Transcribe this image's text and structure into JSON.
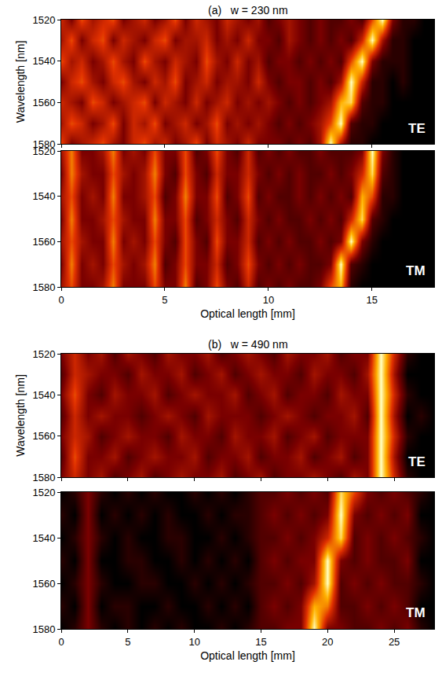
{
  "chart_data": [
    {
      "type": "heatmap",
      "title": "(a)   w = 230 nm",
      "label": "TE",
      "y_label": "Wavelength [nm]",
      "tick_labels": "y",
      "x": [
        0,
        0.5,
        1,
        1.5,
        2,
        2.5,
        3,
        3.5,
        4,
        4.5,
        5,
        5.5,
        6,
        6.5,
        7,
        7.5,
        8,
        8.5,
        9,
        9.5,
        10,
        10.5,
        11,
        11.5,
        12,
        12.5,
        13,
        13.5,
        14,
        14.5,
        15,
        15.5,
        16,
        16.5,
        17,
        17.5,
        18
      ],
      "y": [
        1520,
        1530,
        1540,
        1550,
        1560,
        1570,
        1580
      ],
      "z": [
        [
          5,
          3,
          6,
          4,
          5,
          6,
          3,
          4,
          5,
          3,
          4,
          6,
          3,
          5,
          4,
          3,
          5,
          4,
          3,
          4,
          2,
          3,
          4,
          3,
          2,
          3,
          2,
          2,
          3,
          2,
          6,
          10,
          3,
          1,
          1,
          0,
          0
        ],
        [
          4,
          6,
          3,
          5,
          6,
          3,
          5,
          4,
          3,
          5,
          6,
          3,
          4,
          4,
          5,
          3,
          4,
          3,
          5,
          3,
          3,
          2,
          4,
          3,
          2,
          3,
          2,
          3,
          2,
          5,
          10,
          4,
          1,
          1,
          0,
          0,
          0
        ],
        [
          6,
          4,
          5,
          3,
          4,
          6,
          4,
          3,
          6,
          4,
          3,
          5,
          4,
          3,
          6,
          4,
          3,
          5,
          3,
          4,
          2,
          3,
          3,
          2,
          3,
          2,
          3,
          2,
          6,
          10,
          3,
          1,
          1,
          1,
          0,
          0,
          0
        ],
        [
          3,
          5,
          6,
          4,
          3,
          5,
          6,
          4,
          3,
          5,
          4,
          6,
          3,
          4,
          5,
          3,
          4,
          4,
          3,
          5,
          3,
          2,
          3,
          3,
          2,
          3,
          2,
          4,
          10,
          5,
          1,
          1,
          0,
          1,
          0,
          0,
          0
        ],
        [
          5,
          4,
          3,
          6,
          5,
          3,
          4,
          5,
          6,
          3,
          5,
          4,
          3,
          5,
          3,
          4,
          5,
          3,
          4,
          3,
          4,
          3,
          2,
          3,
          2,
          3,
          4,
          8,
          9,
          2,
          1,
          1,
          0,
          0,
          0,
          0,
          0
        ],
        [
          4,
          6,
          5,
          3,
          4,
          6,
          3,
          5,
          4,
          6,
          3,
          4,
          5,
          3,
          4,
          6,
          3,
          4,
          3,
          4,
          3,
          2,
          3,
          2,
          3,
          4,
          6,
          10,
          2,
          1,
          1,
          0,
          0,
          0,
          0,
          0,
          0
        ],
        [
          6,
          3,
          4,
          5,
          6,
          4,
          3,
          5,
          6,
          4,
          5,
          3,
          4,
          6,
          3,
          5,
          4,
          3,
          5,
          3,
          3,
          3,
          2,
          3,
          2,
          4,
          10,
          4,
          1,
          1,
          0,
          0,
          0,
          0,
          0,
          0,
          0
        ]
      ],
      "zlim": [
        0,
        10
      ],
      "xlim": [
        0,
        18
      ],
      "ylim": [
        1580,
        1520
      ],
      "xticks": [
        0,
        5,
        10,
        15
      ],
      "yticks": [
        1520,
        1540,
        1560,
        1580
      ]
    },
    {
      "type": "heatmap",
      "label": "TM",
      "x_label": "Optical length [mm]",
      "x": [
        0,
        0.5,
        1,
        1.5,
        2,
        2.5,
        3,
        3.5,
        4,
        4.5,
        5,
        5.5,
        6,
        6.5,
        7,
        7.5,
        8,
        8.5,
        9,
        9.5,
        10,
        10.5,
        11,
        11.5,
        12,
        12.5,
        13,
        13.5,
        14,
        14.5,
        15,
        15.5,
        16,
        16.5,
        17,
        17.5,
        18
      ],
      "y": [
        1520,
        1530,
        1540,
        1550,
        1560,
        1570,
        1580
      ],
      "z": [
        [
          4,
          7,
          3,
          3,
          4,
          7,
          3,
          4,
          3,
          6,
          3,
          3,
          6,
          2,
          3,
          6,
          3,
          2,
          5,
          2,
          3,
          2,
          3,
          2,
          2,
          3,
          2,
          2,
          2,
          3,
          10,
          3,
          1,
          0,
          0,
          0,
          0
        ],
        [
          3,
          7,
          4,
          3,
          3,
          6,
          4,
          3,
          4,
          7,
          3,
          2,
          6,
          3,
          2,
          5,
          3,
          3,
          5,
          3,
          2,
          3,
          2,
          3,
          2,
          2,
          3,
          2,
          3,
          5,
          9,
          2,
          1,
          0,
          0,
          0,
          0
        ],
        [
          4,
          6,
          3,
          4,
          3,
          7,
          3,
          3,
          4,
          6,
          2,
          3,
          7,
          3,
          3,
          6,
          2,
          3,
          6,
          2,
          3,
          2,
          2,
          3,
          2,
          3,
          2,
          3,
          2,
          8,
          6,
          1,
          1,
          0,
          0,
          0,
          0
        ],
        [
          3,
          7,
          3,
          3,
          4,
          6,
          4,
          3,
          3,
          7,
          3,
          3,
          6,
          2,
          3,
          5,
          3,
          2,
          5,
          3,
          2,
          3,
          2,
          2,
          3,
          2,
          3,
          2,
          5,
          9,
          2,
          1,
          0,
          0,
          0,
          0,
          0
        ],
        [
          4,
          6,
          4,
          3,
          3,
          7,
          3,
          4,
          3,
          6,
          3,
          2,
          6,
          3,
          2,
          6,
          3,
          3,
          5,
          2,
          3,
          2,
          3,
          2,
          2,
          3,
          2,
          3,
          10,
          3,
          1,
          0,
          0,
          0,
          0,
          0,
          0
        ],
        [
          3,
          7,
          3,
          4,
          3,
          6,
          4,
          3,
          4,
          7,
          2,
          3,
          6,
          3,
          3,
          5,
          2,
          3,
          6,
          3,
          2,
          3,
          2,
          3,
          2,
          2,
          3,
          10,
          2,
          1,
          0,
          0,
          0,
          0,
          0,
          0,
          0
        ],
        [
          4,
          6,
          3,
          3,
          4,
          7,
          3,
          3,
          3,
          6,
          3,
          3,
          7,
          2,
          3,
          6,
          3,
          2,
          5,
          2,
          3,
          2,
          3,
          2,
          2,
          3,
          6,
          8,
          1,
          0,
          0,
          0,
          0,
          0,
          0,
          0,
          0
        ]
      ],
      "zlim": [
        0,
        10
      ],
      "xlim": [
        0,
        18
      ],
      "ylim": [
        1580,
        1520
      ],
      "xticks": [
        0,
        5,
        10,
        15
      ],
      "yticks": [
        1520,
        1540,
        1560,
        1580
      ]
    },
    {
      "type": "heatmap",
      "title": "(b)   w = 490 nm",
      "label": "TE",
      "y_label": "Wavelength [nm]",
      "tick_labels": "y",
      "x": [
        0,
        1,
        2,
        3,
        4,
        5,
        6,
        7,
        8,
        9,
        10,
        11,
        12,
        13,
        14,
        15,
        16,
        17,
        18,
        19,
        20,
        21,
        22,
        23,
        24,
        25,
        26,
        27,
        28
      ],
      "y": [
        1520,
        1530,
        1540,
        1550,
        1560,
        1570,
        1580
      ],
      "z": [
        [
          3,
          5,
          3,
          4,
          2,
          4,
          3,
          2,
          4,
          3,
          3,
          4,
          2,
          3,
          4,
          3,
          2,
          4,
          3,
          3,
          4,
          2,
          3,
          3,
          10,
          5,
          1,
          0,
          0
        ],
        [
          2,
          5,
          4,
          3,
          3,
          2,
          4,
          3,
          3,
          4,
          2,
          3,
          4,
          2,
          3,
          4,
          3,
          3,
          2,
          4,
          3,
          3,
          2,
          4,
          10,
          4,
          0,
          0,
          0
        ],
        [
          3,
          6,
          3,
          2,
          4,
          3,
          3,
          4,
          2,
          3,
          4,
          3,
          3,
          4,
          2,
          3,
          4,
          2,
          3,
          3,
          2,
          4,
          3,
          3,
          10,
          5,
          1,
          0,
          0
        ],
        [
          2,
          5,
          3,
          4,
          3,
          3,
          2,
          3,
          4,
          3,
          2,
          4,
          3,
          3,
          3,
          2,
          3,
          4,
          3,
          2,
          3,
          3,
          4,
          2,
          10,
          4,
          0,
          1,
          0
        ],
        [
          3,
          5,
          4,
          2,
          3,
          4,
          3,
          3,
          2,
          4,
          3,
          3,
          2,
          4,
          3,
          3,
          4,
          2,
          3,
          4,
          2,
          3,
          3,
          3,
          10,
          5,
          1,
          0,
          0
        ],
        [
          2,
          6,
          3,
          3,
          4,
          2,
          3,
          4,
          3,
          3,
          4,
          2,
          3,
          3,
          4,
          2,
          3,
          3,
          4,
          2,
          3,
          4,
          2,
          3,
          10,
          4,
          0,
          0,
          0
        ],
        [
          3,
          5,
          3,
          4,
          2,
          3,
          4,
          2,
          3,
          4,
          3,
          3,
          4,
          2,
          3,
          4,
          2,
          3,
          3,
          4,
          3,
          2,
          4,
          3,
          10,
          5,
          1,
          0,
          0
        ]
      ],
      "zlim": [
        0,
        10
      ],
      "xlim": [
        0,
        28
      ],
      "ylim": [
        1580,
        1520
      ],
      "xticks": [
        0,
        5,
        10,
        15,
        20,
        25
      ],
      "yticks": [
        1520,
        1540,
        1560,
        1580
      ]
    },
    {
      "type": "heatmap",
      "label": "TM",
      "x_label": "Optical length [mm]",
      "x": [
        0,
        1,
        2,
        3,
        4,
        5,
        6,
        7,
        8,
        9,
        10,
        11,
        12,
        13,
        14,
        15,
        16,
        17,
        18,
        19,
        20,
        21,
        22,
        23,
        24,
        25,
        26,
        27,
        28
      ],
      "y": [
        1520,
        1530,
        1540,
        1550,
        1560,
        1570,
        1580
      ],
      "z": [
        [
          0,
          1,
          3,
          1,
          0,
          1,
          0,
          1,
          0,
          0,
          1,
          0,
          1,
          0,
          1,
          2,
          2,
          3,
          2,
          3,
          2,
          9,
          6,
          3,
          2,
          3,
          2,
          1,
          0
        ],
        [
          1,
          0,
          3,
          0,
          1,
          0,
          1,
          0,
          1,
          0,
          0,
          1,
          0,
          1,
          1,
          2,
          3,
          2,
          3,
          2,
          3,
          10,
          3,
          2,
          3,
          2,
          3,
          0,
          0
        ],
        [
          0,
          1,
          3,
          1,
          0,
          1,
          0,
          0,
          1,
          1,
          0,
          0,
          1,
          0,
          1,
          2,
          2,
          3,
          2,
          3,
          5,
          9,
          2,
          3,
          2,
          3,
          2,
          1,
          0
        ],
        [
          1,
          0,
          3,
          0,
          0,
          1,
          1,
          0,
          0,
          1,
          0,
          1,
          0,
          1,
          0,
          2,
          3,
          2,
          3,
          3,
          10,
          3,
          2,
          3,
          2,
          2,
          3,
          0,
          0
        ],
        [
          0,
          1,
          3,
          1,
          0,
          0,
          1,
          1,
          0,
          0,
          1,
          0,
          1,
          0,
          1,
          2,
          2,
          3,
          2,
          4,
          10,
          2,
          3,
          2,
          3,
          2,
          2,
          1,
          0
        ],
        [
          1,
          0,
          3,
          0,
          1,
          1,
          0,
          0,
          1,
          0,
          0,
          1,
          0,
          1,
          0,
          2,
          3,
          2,
          3,
          8,
          7,
          2,
          2,
          3,
          2,
          3,
          2,
          0,
          0
        ],
        [
          0,
          1,
          3,
          1,
          0,
          1,
          0,
          1,
          0,
          1,
          0,
          0,
          1,
          0,
          1,
          2,
          2,
          3,
          3,
          10,
          3,
          3,
          2,
          2,
          3,
          2,
          3,
          1,
          0
        ]
      ],
      "zlim": [
        0,
        10
      ],
      "xlim": [
        0,
        28
      ],
      "ylim": [
        1580,
        1520
      ],
      "xticks": [
        0,
        5,
        10,
        15,
        20,
        25
      ],
      "yticks": [
        1520,
        1540,
        1560,
        1580
      ]
    }
  ]
}
